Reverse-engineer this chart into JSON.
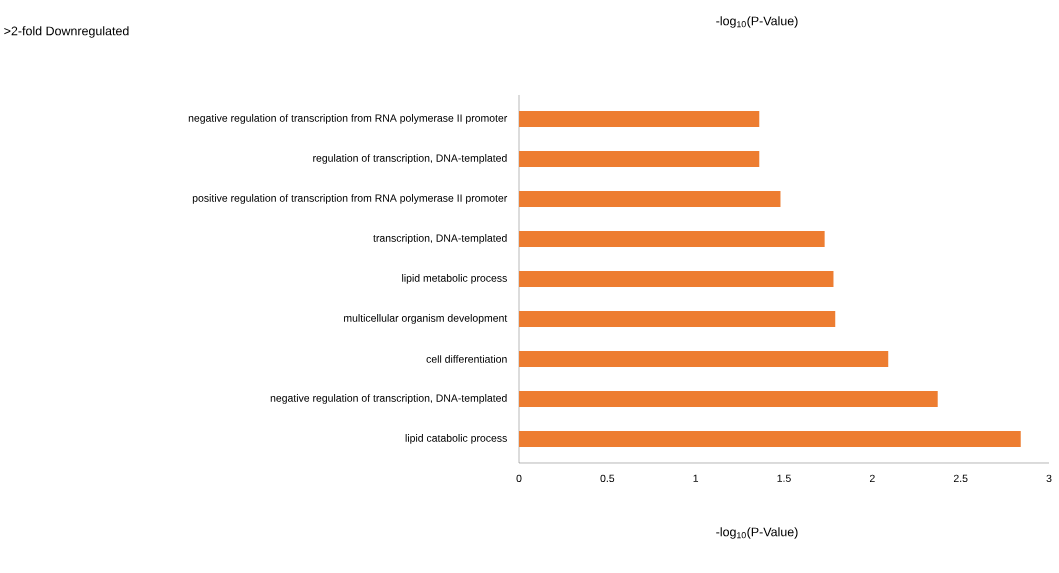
{
  "chart_data": {
    "type": "bar",
    "orientation": "horizontal",
    "title": ">2-fold Downregulated",
    "xlabel": "-log$_{10}$(P-Value)",
    "annotations": [
      "-log$_{10}$(P-Value)"
    ],
    "categories": [
      "negative regulation of transcription from RNA polymerase II promoter",
      "regulation of transcription, DNA-templated",
      "positive regulation of transcription from RNA polymerase II promoter",
      "transcription, DNA-templated",
      "lipid metabolic process",
      "multicellular organism development",
      "cell differentiation",
      "negative regulation of transcription, DNA-templated",
      "lipid catabolic process"
    ],
    "values": [
      1.36,
      1.36,
      1.48,
      1.73,
      1.78,
      1.79,
      2.09,
      2.37,
      2.84
    ],
    "color": "#ed7d31",
    "xlim": [
      0,
      3
    ],
    "xticks": [
      0,
      0.5,
      1,
      1.5,
      2,
      2.5,
      3
    ]
  }
}
